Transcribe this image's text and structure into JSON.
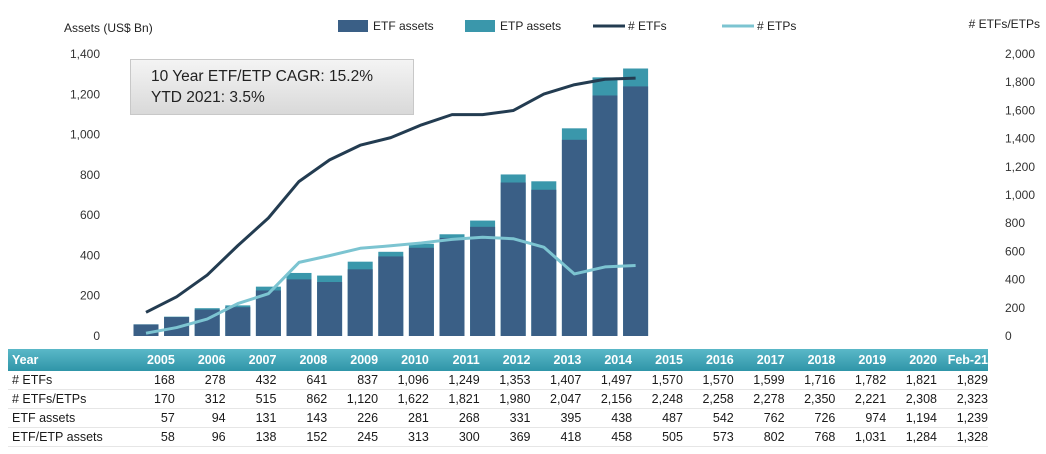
{
  "chart_data": {
    "type": "bar",
    "categories": [
      "2005",
      "2006",
      "2007",
      "2008",
      "2009",
      "2010",
      "2011",
      "2012",
      "2013",
      "2014",
      "2015",
      "2016",
      "2017",
      "2018",
      "2019",
      "2020",
      "Feb-21"
    ],
    "series": [
      {
        "name": "ETF assets",
        "type": "bar",
        "axis": "left",
        "color": "#3a5f86",
        "values": [
          57,
          94,
          131,
          143,
          226,
          281,
          268,
          331,
          395,
          438,
          487,
          542,
          762,
          726,
          974,
          1194,
          1239
        ]
      },
      {
        "name": "ETP assets",
        "type": "bar",
        "axis": "left",
        "color": "#3a97ab",
        "values": [
          58,
          96,
          138,
          152,
          245,
          313,
          300,
          369,
          418,
          458,
          505,
          573,
          802,
          768,
          1031,
          1284,
          1328
        ]
      },
      {
        "name": "# ETFs",
        "type": "line",
        "axis": "right",
        "color": "#233c51",
        "values": [
          168,
          278,
          432,
          641,
          837,
          1096,
          1249,
          1353,
          1407,
          1497,
          1570,
          1570,
          1599,
          1716,
          1782,
          1821,
          1829
        ]
      },
      {
        "name": "# ETPs",
        "type": "line",
        "axis": "right",
        "color": "#7cc4d1",
        "values": [
          20,
          60,
          120,
          230,
          300,
          522,
          570,
          622,
          640,
          660,
          685,
          700,
          690,
          630,
          440,
          490,
          500
        ]
      }
    ],
    "ylabel": "Assets (US$ Bn)",
    "y2label": "# ETFs/ETPs",
    "ylim": [
      0,
      1400
    ],
    "y2lim": [
      0,
      2000
    ],
    "yticks": [
      "0",
      "200",
      "400",
      "600",
      "800",
      "1,000",
      "1,200",
      "1,400"
    ],
    "y2ticks": [
      "0",
      "200",
      "400",
      "600",
      "800",
      "1,000",
      "1,200",
      "1,400",
      "1,600",
      "1,800",
      "2,000"
    ],
    "legend_position": "top",
    "grid": false
  },
  "callout": {
    "line1": "10 Year ETF/ETP CAGR: 15.2%",
    "line2": "YTD 2021: 3.5%"
  },
  "table": {
    "header_label": "Year",
    "years": [
      "2005",
      "2006",
      "2007",
      "2008",
      "2009",
      "2010",
      "2011",
      "2012",
      "2013",
      "2014",
      "2015",
      "2016",
      "2017",
      "2018",
      "2019",
      "2020",
      "Feb-21"
    ],
    "rows": [
      {
        "label": "# ETFs",
        "values": [
          "168",
          "278",
          "432",
          "641",
          "837",
          "1,096",
          "1,249",
          "1,353",
          "1,407",
          "1,497",
          "1,570",
          "1,570",
          "1,599",
          "1,716",
          "1,782",
          "1,821",
          "1,829"
        ]
      },
      {
        "label": "# ETFs/ETPs",
        "values": [
          "170",
          "312",
          "515",
          "862",
          "1,120",
          "1,622",
          "1,821",
          "1,980",
          "2,047",
          "2,156",
          "2,248",
          "2,258",
          "2,278",
          "2,350",
          "2,221",
          "2,308",
          "2,323"
        ]
      },
      {
        "label": "ETF assets",
        "values": [
          "57",
          "94",
          "131",
          "143",
          "226",
          "281",
          "268",
          "331",
          "395",
          "438",
          "487",
          "542",
          "762",
          "726",
          "974",
          "1,194",
          "1,239"
        ]
      },
      {
        "label": "ETF/ETP assets",
        "values": [
          "58",
          "96",
          "138",
          "152",
          "245",
          "313",
          "300",
          "369",
          "418",
          "458",
          "505",
          "573",
          "802",
          "768",
          "1,031",
          "1,284",
          "1,328"
        ]
      }
    ]
  }
}
